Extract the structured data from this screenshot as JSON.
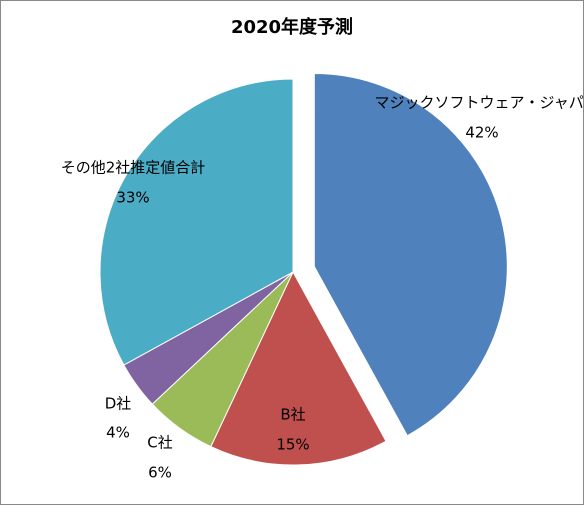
{
  "chart_data": {
    "type": "pie",
    "title": "2020年度予測",
    "categories": [
      "マジックソフトウェア・ジャパン",
      "B社",
      "C社",
      "D社",
      "その他2社推定値合計"
    ],
    "values": [
      42,
      15,
      6,
      4,
      33
    ],
    "value_labels": [
      "42%",
      "15%",
      "6%",
      "4%",
      "33%"
    ],
    "colors": [
      "#4f81bd",
      "#c0504d",
      "#9bbb59",
      "#8064a2",
      "#4bacc6"
    ],
    "exploded": [
      0
    ]
  }
}
